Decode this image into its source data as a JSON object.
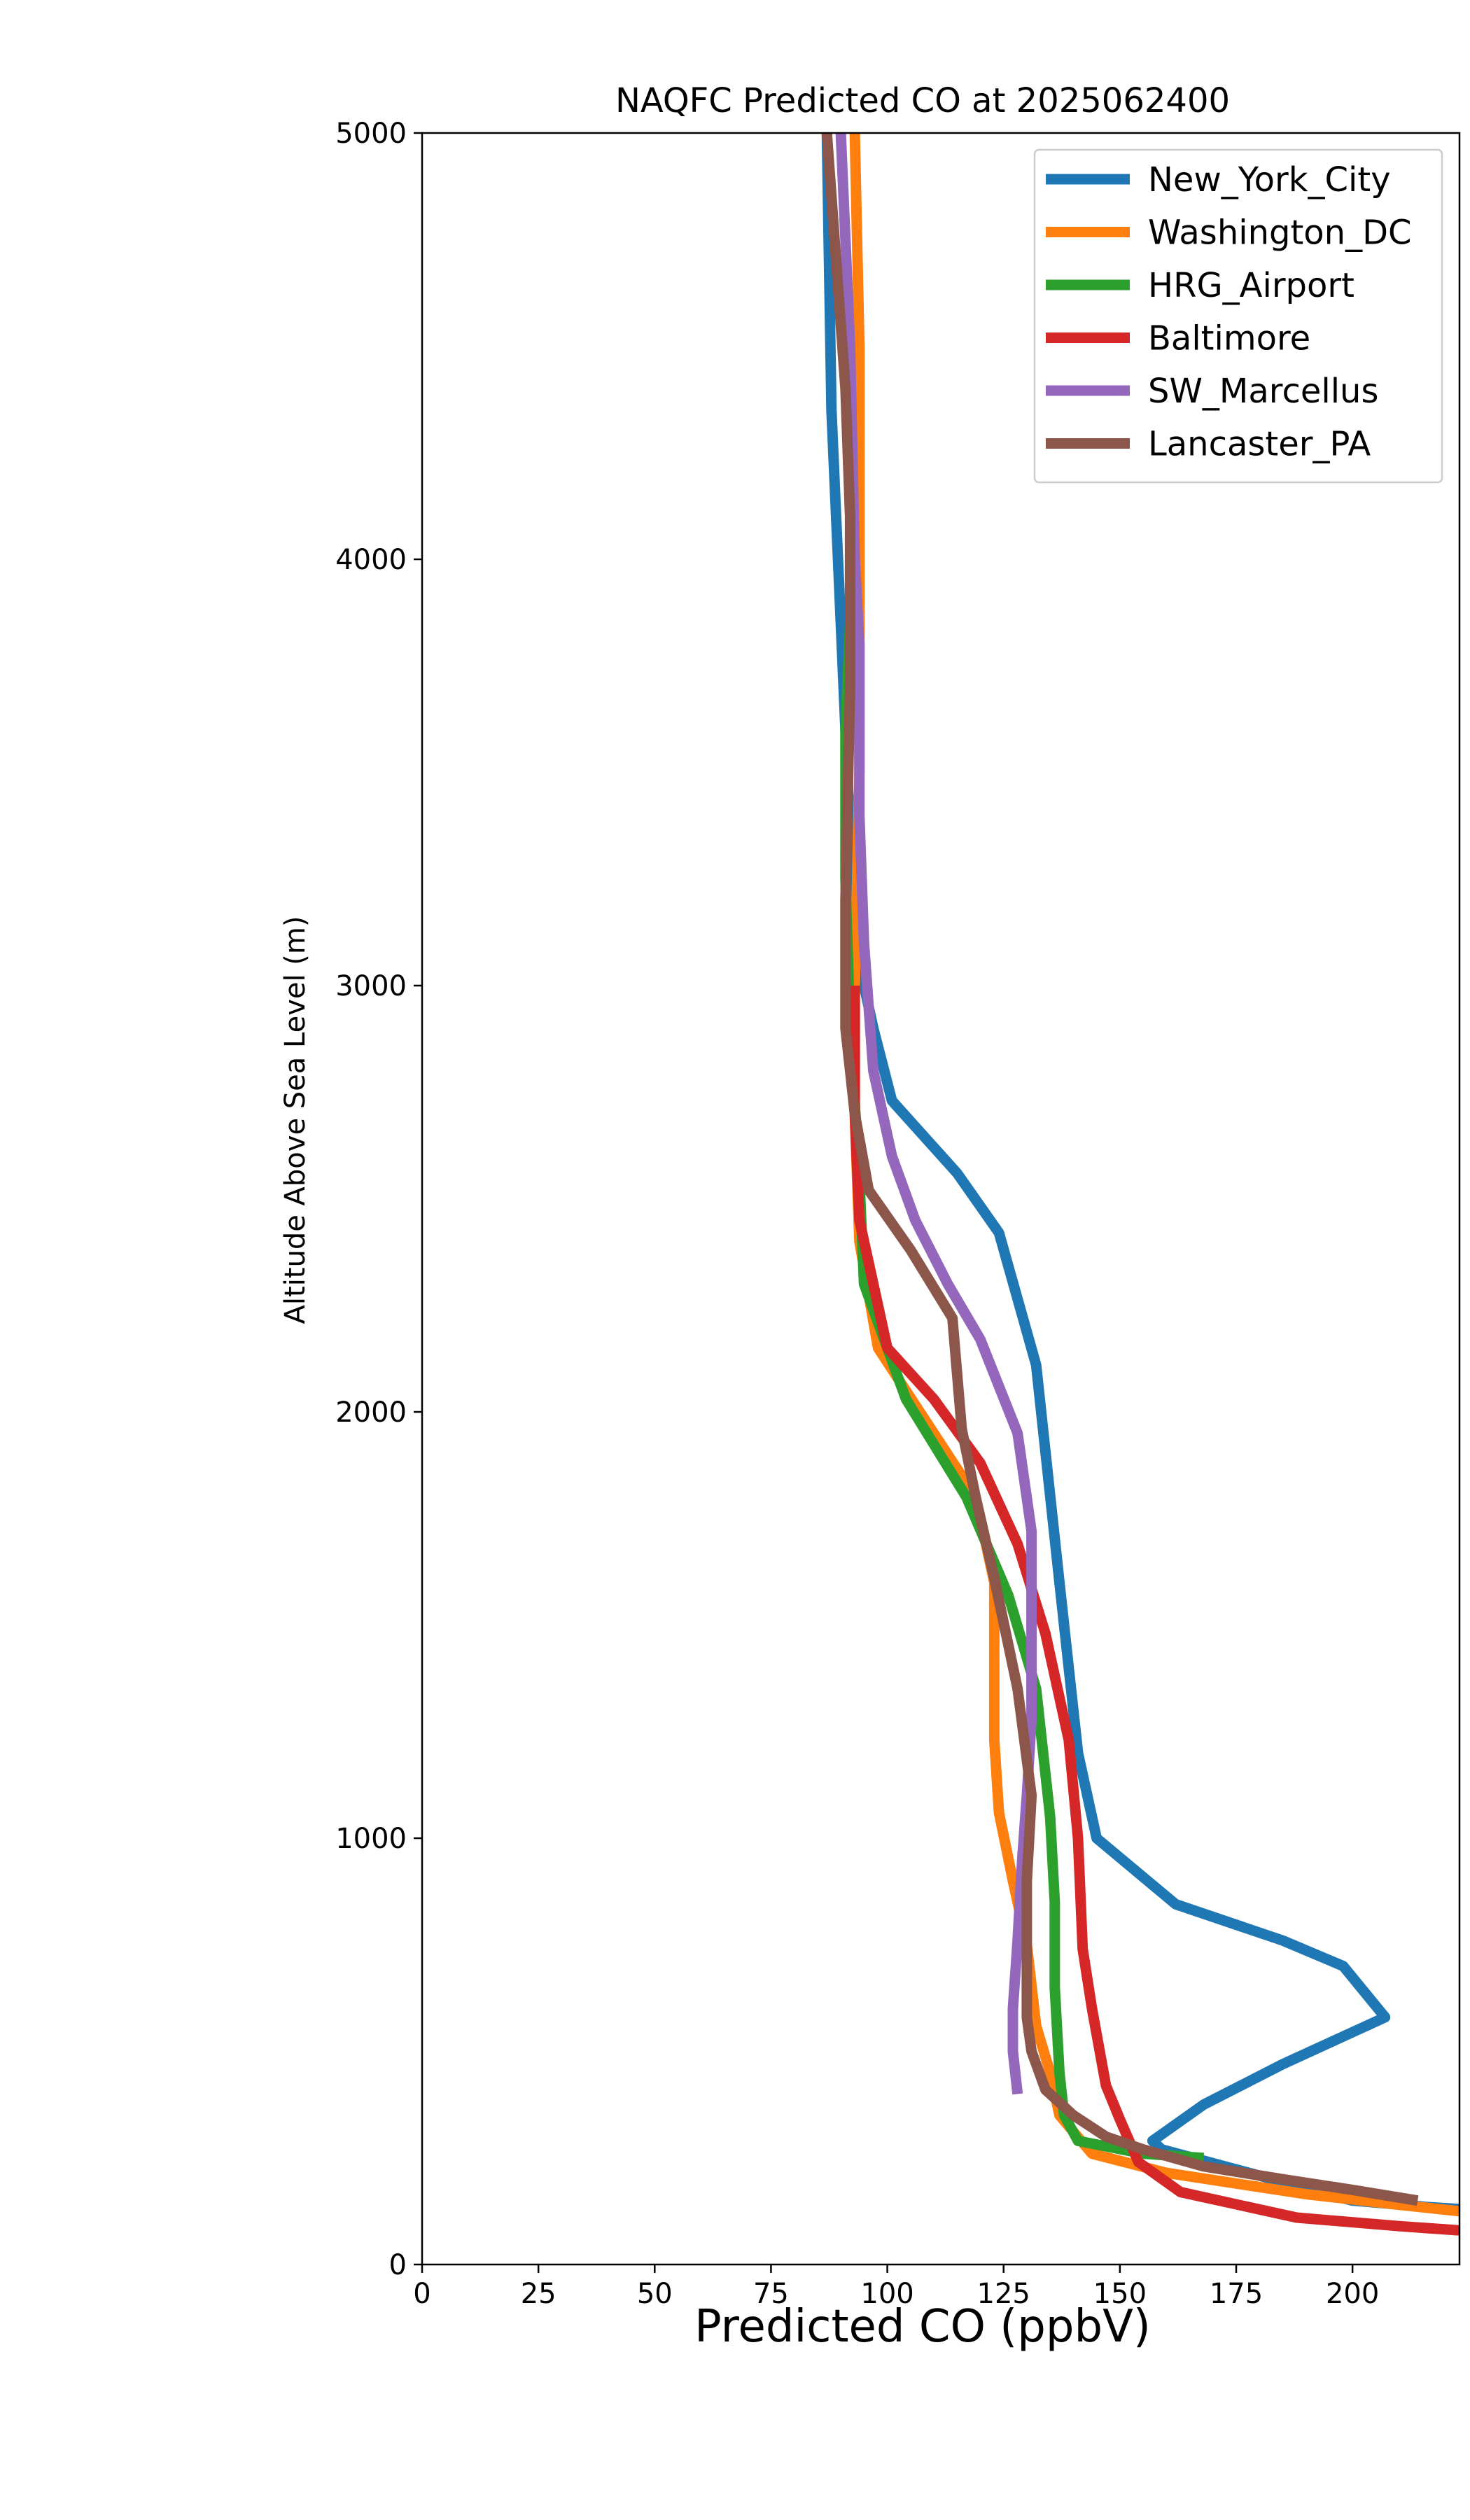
{
  "chart_data": {
    "type": "line",
    "title": "NAQFC Predicted CO at 2025062400",
    "xlabel": "Predicted CO (ppbV)",
    "ylabel": "Altitude Above Sea Level (m)",
    "xlim": [
      0,
      223
    ],
    "ylim": [
      0,
      5000
    ],
    "xticks": [
      0,
      25,
      50,
      75,
      100,
      125,
      150,
      175,
      200
    ],
    "yticks": [
      0,
      1000,
      2000,
      3000,
      4000,
      5000
    ],
    "grid": false,
    "legend_position": "top-right",
    "series": [
      {
        "name": "New_York_City",
        "color": "#1f77b4",
        "points": [
          [
            87,
            5000
          ],
          [
            88,
            4350
          ],
          [
            90,
            3850
          ],
          [
            93,
            3100
          ],
          [
            97,
            2900
          ],
          [
            101,
            2730
          ],
          [
            115,
            2560
          ],
          [
            124,
            2420
          ],
          [
            132,
            2110
          ],
          [
            137,
            1600
          ],
          [
            141,
            1200
          ],
          [
            145,
            1000
          ],
          [
            162,
            845
          ],
          [
            185,
            760
          ],
          [
            198,
            700
          ],
          [
            207,
            580
          ],
          [
            185,
            470
          ],
          [
            168,
            375
          ],
          [
            157,
            290
          ],
          [
            159,
            270
          ],
          [
            200,
            150
          ],
          [
            216,
            135
          ],
          [
            223,
            130
          ]
        ]
      },
      {
        "name": "Washington_DC",
        "color": "#ff7f0e",
        "points": [
          [
            93,
            5000
          ],
          [
            94,
            4500
          ],
          [
            94,
            4000
          ],
          [
            94,
            3500
          ],
          [
            93,
            3000
          ],
          [
            93,
            2700
          ],
          [
            94,
            2400
          ],
          [
            98,
            2150
          ],
          [
            110,
            1950
          ],
          [
            119,
            1800
          ],
          [
            123,
            1600
          ],
          [
            123,
            1450
          ],
          [
            123,
            1230
          ],
          [
            124,
            1060
          ],
          [
            127,
            900
          ],
          [
            130,
            750
          ],
          [
            132,
            560
          ],
          [
            135,
            450
          ],
          [
            137,
            350
          ],
          [
            144,
            260
          ],
          [
            160,
            215
          ],
          [
            190,
            165
          ],
          [
            210,
            140
          ],
          [
            223,
            125
          ]
        ]
      },
      {
        "name": "HRG_Airport",
        "color": "#2ca02c",
        "points": [
          [
            92,
            3850
          ],
          [
            91,
            3600
          ],
          [
            91,
            3250
          ],
          [
            92,
            2900
          ],
          [
            94,
            2550
          ],
          [
            95,
            2300
          ],
          [
            104,
            2030
          ],
          [
            117,
            1800
          ],
          [
            126,
            1570
          ],
          [
            132,
            1350
          ],
          [
            135,
            1050
          ],
          [
            136,
            850
          ],
          [
            136,
            650
          ],
          [
            137,
            450
          ],
          [
            138,
            350
          ],
          [
            141,
            290
          ],
          [
            155,
            260
          ],
          [
            168,
            250
          ]
        ]
      },
      {
        "name": "Baltimore",
        "color": "#d62728",
        "points": [
          [
            93,
            3000
          ],
          [
            93,
            2700
          ],
          [
            94,
            2450
          ],
          [
            96,
            2350
          ],
          [
            100,
            2150
          ],
          [
            110,
            2030
          ],
          [
            120,
            1880
          ],
          [
            128,
            1690
          ],
          [
            134,
            1480
          ],
          [
            139,
            1230
          ],
          [
            141,
            1000
          ],
          [
            142,
            740
          ],
          [
            144,
            600
          ],
          [
            147,
            420
          ],
          [
            150,
            340
          ],
          [
            152,
            290
          ],
          [
            154,
            240
          ],
          [
            163,
            170
          ],
          [
            188,
            110
          ],
          [
            210,
            90
          ],
          [
            223,
            80
          ]
        ]
      },
      {
        "name": "SW_Marcellus",
        "color": "#9467bd",
        "points": [
          [
            90,
            5000
          ],
          [
            92,
            4500
          ],
          [
            93,
            4000
          ],
          [
            94,
            3800
          ],
          [
            94,
            3400
          ],
          [
            95,
            3100
          ],
          [
            97,
            2800
          ],
          [
            101,
            2600
          ],
          [
            106,
            2450
          ],
          [
            113,
            2300
          ],
          [
            120,
            2170
          ],
          [
            128,
            1950
          ],
          [
            131,
            1720
          ],
          [
            131,
            1500
          ],
          [
            131,
            1280
          ],
          [
            130,
            1100
          ],
          [
            129,
            950
          ],
          [
            128,
            760
          ],
          [
            127,
            600
          ],
          [
            127,
            500
          ],
          [
            128,
            400
          ]
        ]
      },
      {
        "name": "Lancaster_PA",
        "color": "#8c564b",
        "points": [
          [
            87,
            5000
          ],
          [
            89,
            4700
          ],
          [
            91,
            4400
          ],
          [
            92,
            4100
          ],
          [
            92,
            3700
          ],
          [
            91,
            3200
          ],
          [
            91,
            2900
          ],
          [
            93,
            2700
          ],
          [
            96,
            2520
          ],
          [
            105,
            2380
          ],
          [
            114,
            2220
          ],
          [
            116,
            1960
          ],
          [
            119,
            1800
          ],
          [
            123,
            1610
          ],
          [
            128,
            1350
          ],
          [
            131,
            1100
          ],
          [
            130,
            900
          ],
          [
            130,
            750
          ],
          [
            130,
            580
          ],
          [
            131,
            500
          ],
          [
            134,
            410
          ],
          [
            140,
            350
          ],
          [
            147,
            300
          ],
          [
            155,
            270
          ],
          [
            168,
            230
          ],
          [
            185,
            200
          ],
          [
            200,
            175
          ],
          [
            214,
            150
          ]
        ]
      }
    ]
  }
}
